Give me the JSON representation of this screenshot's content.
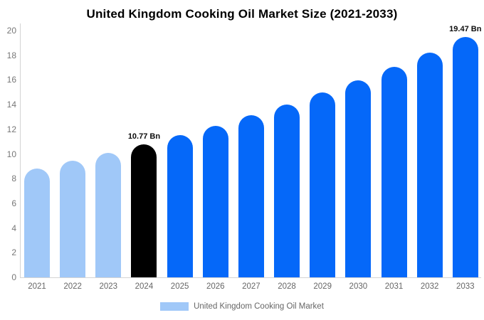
{
  "title": "United Kingdom Cooking Oil Market Size (2021-2033)",
  "chart_data": {
    "type": "bar",
    "categories": [
      "2021",
      "2022",
      "2023",
      "2024",
      "2025",
      "2026",
      "2027",
      "2028",
      "2029",
      "2030",
      "2031",
      "2032",
      "2033"
    ],
    "values": [
      8.84,
      9.44,
      10.09,
      10.77,
      11.5,
      12.28,
      13.12,
      14.01,
      14.97,
      15.99,
      17.08,
      18.24,
      19.47
    ],
    "bar_colors": [
      "#a0c8f8",
      "#a0c8f8",
      "#a0c8f8",
      "#000000",
      "#0568f9",
      "#0568f9",
      "#0568f9",
      "#0568f9",
      "#0568f9",
      "#0568f9",
      "#0568f9",
      "#0568f9",
      "#0568f9"
    ],
    "data_labels": [
      {
        "category": "2024",
        "text": "10.77 Bn"
      },
      {
        "category": "2033",
        "text": "19.47 Bn"
      }
    ],
    "title": "United Kingdom Cooking Oil Market Size (2021-2033)",
    "xlabel": "",
    "ylabel": "",
    "ylim": [
      0,
      20
    ],
    "yticks": [
      0,
      2,
      4,
      6,
      8,
      10,
      12,
      14,
      16,
      18,
      20
    ],
    "grid": "off",
    "legend_position": "bottom",
    "legend": "United Kingdom Cooking Oil Market"
  },
  "colors": {
    "history_bar": "#a0c8f8",
    "highlight_bar": "#000000",
    "forecast_bar": "#0568f9",
    "axis_line": "#d4d4d4",
    "tick_text": "#777777",
    "label_text": "#666666",
    "title_text": "#000000"
  }
}
